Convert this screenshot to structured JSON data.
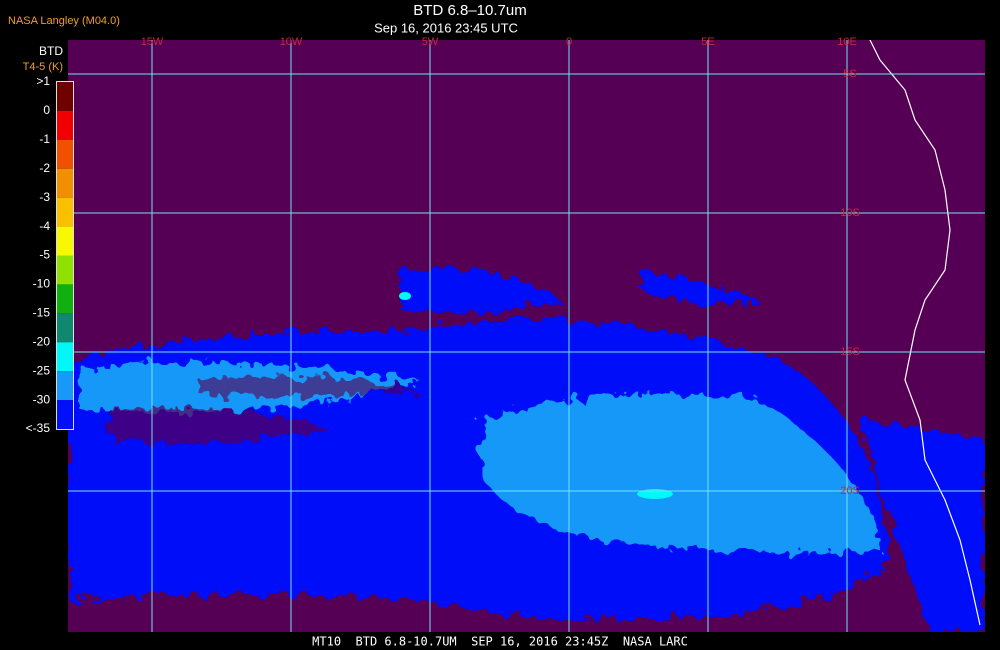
{
  "header": {
    "source": "NASA Langley (M04.0)",
    "title": "BTD 6.8–10.7um",
    "timestamp": "Sep 16, 2016 23:45 UTC"
  },
  "legend": {
    "title": "BTD",
    "units": "T4-5 (K)",
    "labels": [
      ">1",
      "0",
      "-1",
      "-2",
      "-3",
      "-4",
      "-5",
      "-10",
      "-15",
      "-20",
      "-25",
      "-30",
      "<-35"
    ],
    "colors": [
      "#6e0000",
      "#f00000",
      "#f05000",
      "#f09000",
      "#f8c000",
      "#f8f800",
      "#90e000",
      "#10b010",
      "#108870",
      "#00f8f8",
      "#1898f8",
      "#0010f8",
      "#550055"
    ]
  },
  "map": {
    "longitude_labels": [
      "15W",
      "10W",
      "5W",
      "0",
      "5E",
      "10E"
    ],
    "latitude_labels": [
      "5S",
      "10S",
      "15S",
      "20S"
    ]
  },
  "footer": "MT10  BTD 6.8-10.7UM  SEP 16, 2016 23:45Z  NASA LARC"
}
